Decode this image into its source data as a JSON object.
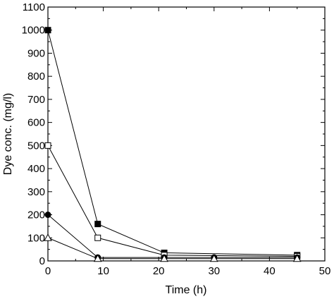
{
  "chart_data": {
    "type": "line",
    "xlabel": "Time (h)",
    "ylabel": "Dye conc. (mg/l)",
    "xlim": [
      0,
      50
    ],
    "ylim": [
      0,
      1100
    ],
    "xticks": [
      0,
      10,
      20,
      30,
      40,
      50
    ],
    "yticks": [
      0,
      100,
      200,
      300,
      400,
      500,
      600,
      700,
      800,
      900,
      1000,
      1100
    ],
    "grid": false,
    "series": [
      {
        "marker": "filled-square",
        "x": [
          0,
          9,
          21,
          45
        ],
        "y": [
          1000,
          160,
          35,
          25
        ]
      },
      {
        "marker": "open-square",
        "x": [
          0,
          9,
          21,
          45
        ],
        "y": [
          500,
          100,
          25,
          20
        ]
      },
      {
        "marker": "filled-circle",
        "x": [
          0,
          9,
          21,
          30,
          45
        ],
        "y": [
          200,
          15,
          15,
          15,
          15
        ]
      },
      {
        "marker": "open-triangle",
        "x": [
          0,
          9,
          21,
          30,
          45
        ],
        "y": [
          100,
          10,
          10,
          10,
          10
        ]
      }
    ],
    "colors": {
      "ink": "#000000",
      "background": "#ffffff"
    }
  }
}
